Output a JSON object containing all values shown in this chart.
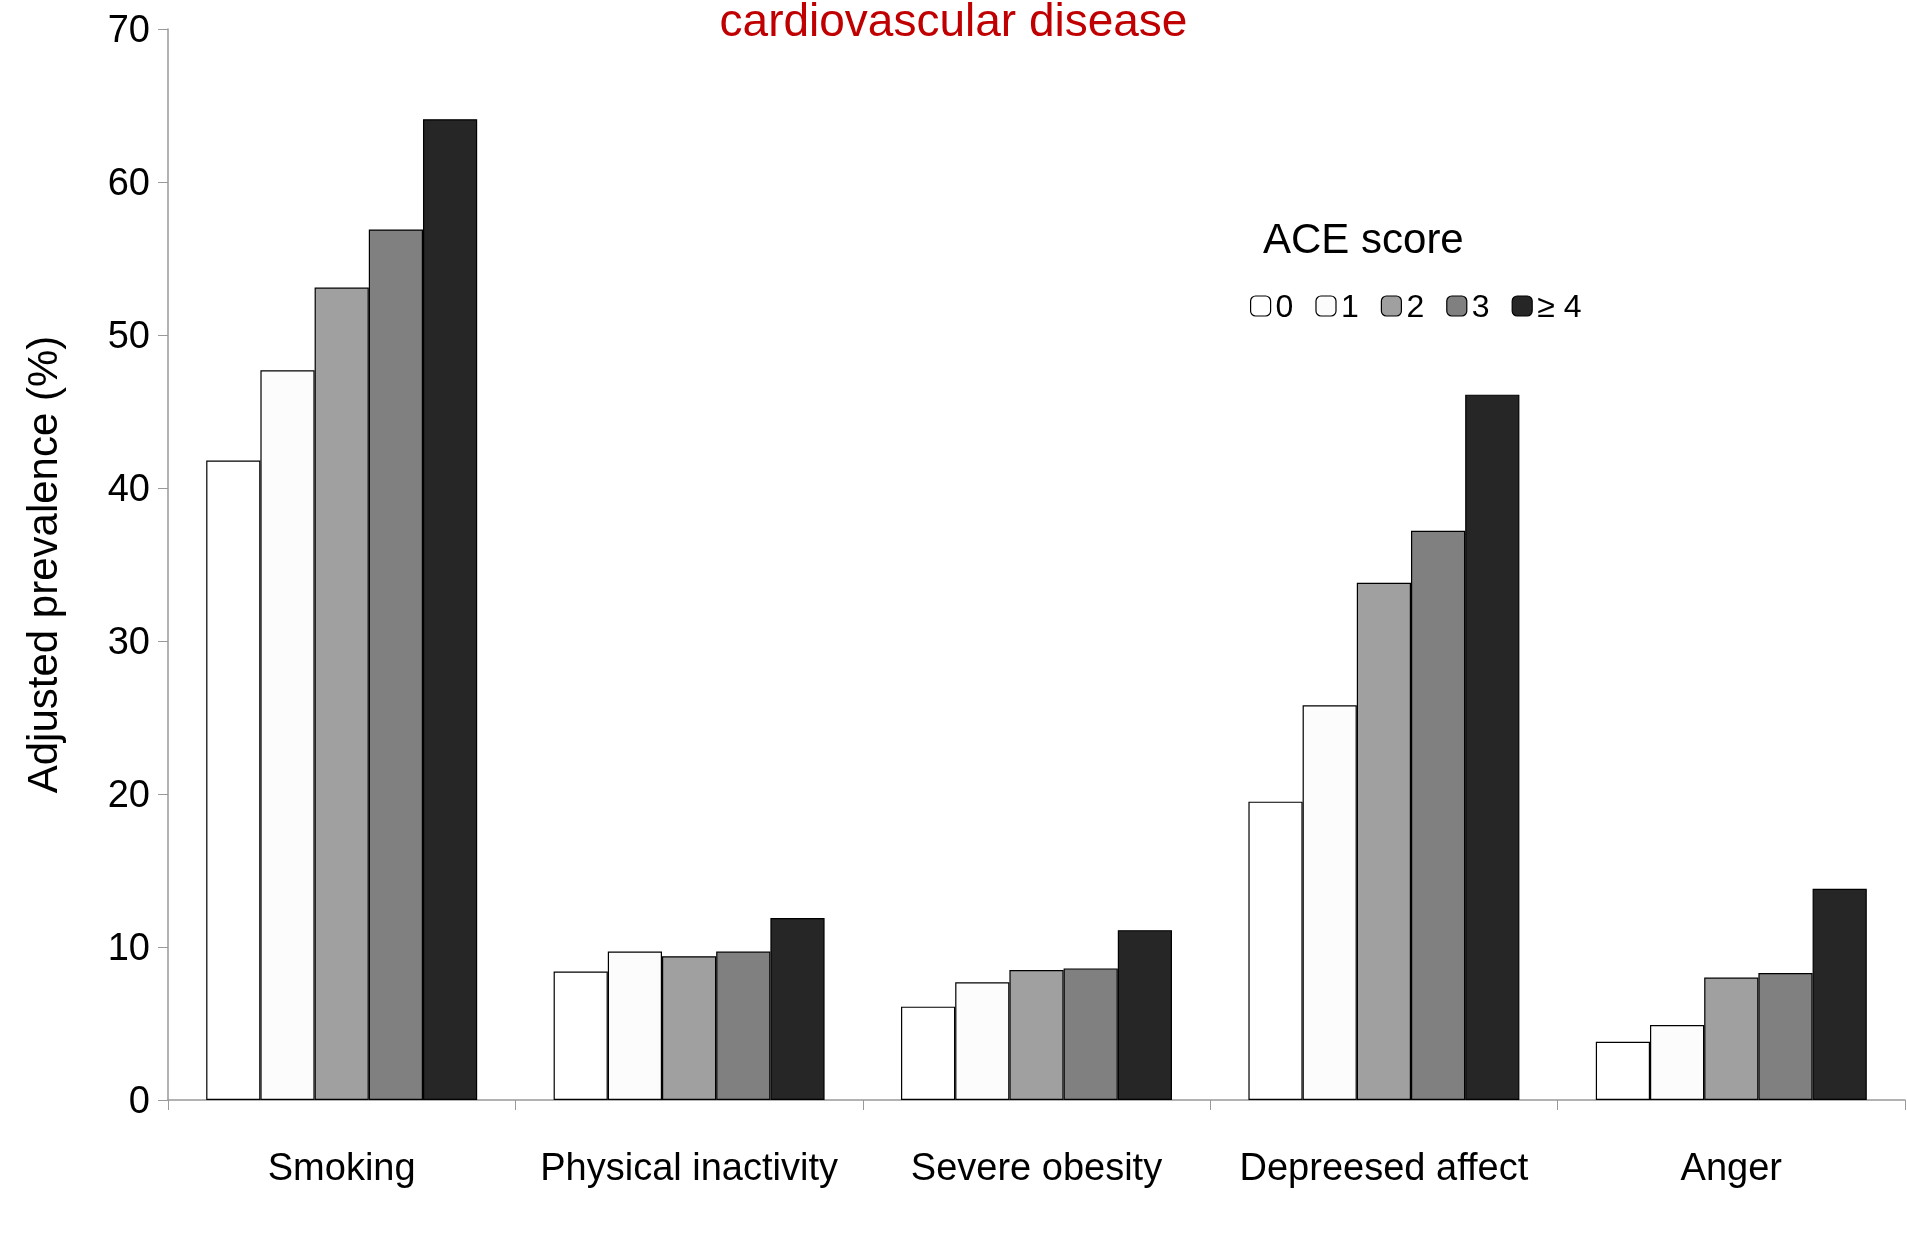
{
  "chart_data": {
    "type": "bar",
    "title": "cardiovascular disease",
    "ylabel": "Adjusted prevalence (%)",
    "legend_title": "ACE score",
    "categories": [
      "Smoking",
      "Physical inactivity",
      "Severe obesity",
      "Depreesed affect",
      "Anger"
    ],
    "series": [
      {
        "name": "0",
        "color": "#ffffff",
        "values": [
          41.8,
          8.4,
          6.1,
          19.5,
          3.8
        ]
      },
      {
        "name": "1",
        "color": "#fcfcfc",
        "values": [
          47.7,
          9.7,
          7.7,
          25.8,
          4.9
        ]
      },
      {
        "name": "2",
        "color": "#a0a0a0",
        "values": [
          53.1,
          9.4,
          8.5,
          33.8,
          8.0
        ]
      },
      {
        "name": "3",
        "color": "#808080",
        "values": [
          56.9,
          9.7,
          8.6,
          37.2,
          8.3
        ]
      },
      {
        "name": "≥ 4",
        "color": "#262626",
        "values": [
          64.1,
          11.9,
          11.1,
          46.1,
          13.8
        ]
      }
    ],
    "ylim": [
      0,
      70
    ],
    "yticks": [
      0,
      10,
      20,
      30,
      40,
      50,
      60,
      70
    ],
    "grid": false,
    "legend": "top right"
  }
}
